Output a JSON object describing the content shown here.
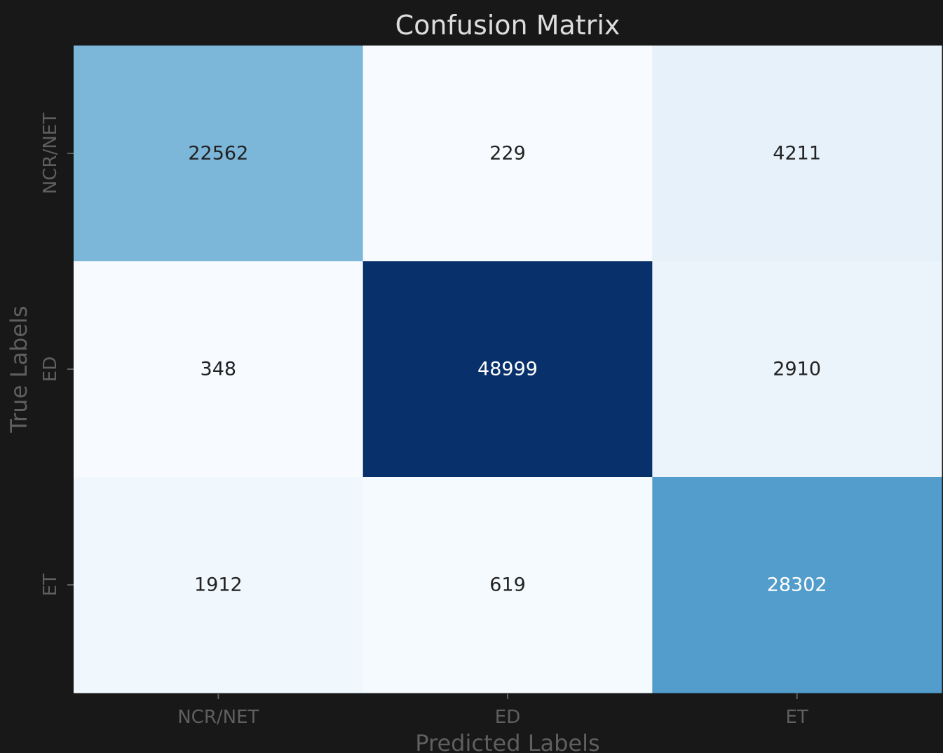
{
  "chart_data": {
    "type": "heatmap",
    "title": "Confusion Matrix",
    "xlabel": "Predicted Labels",
    "ylabel": "True Labels",
    "x_categories": [
      "NCR/NET",
      "ED",
      "ET"
    ],
    "y_categories": [
      "NCR/NET",
      "ED",
      "ET"
    ],
    "matrix": [
      [
        22562,
        229,
        4211
      ],
      [
        348,
        48999,
        2910
      ],
      [
        1912,
        619,
        28302
      ]
    ],
    "colormap": "Blues",
    "value_range": [
      229,
      48999
    ],
    "colorbar": false,
    "grid": false
  },
  "colors": {
    "background": "#181818",
    "title": "#dddddd",
    "axis_text": "#5f5f5f",
    "cell_text_light": "#ffffff",
    "cell_text_dark": "#222222"
  }
}
